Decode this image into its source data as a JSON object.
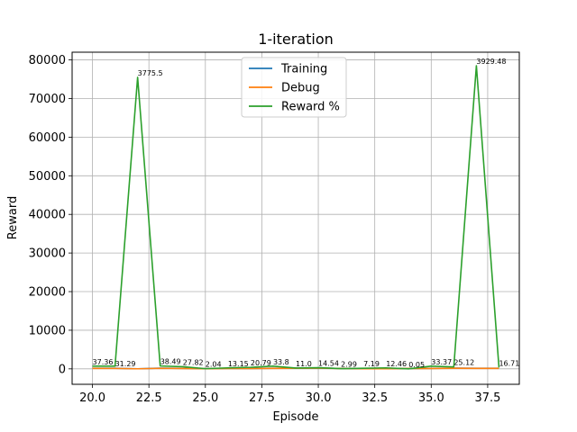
{
  "chart_data": {
    "type": "line",
    "title": "1-iteration",
    "xlabel": "Episode",
    "ylabel": "Reward",
    "xlim": [
      19.1,
      38.9
    ],
    "ylim": [
      -4000,
      82000
    ],
    "xticks": [
      20.0,
      22.5,
      25.0,
      27.5,
      30.0,
      32.5,
      35.0,
      37.5
    ],
    "xtick_labels": [
      "20.0",
      "22.5",
      "25.0",
      "27.5",
      "30.0",
      "32.5",
      "35.0",
      "37.5"
    ],
    "yticks": [
      0,
      10000,
      20000,
      30000,
      40000,
      50000,
      60000,
      70000,
      80000
    ],
    "ytick_labels": [
      "0",
      "10000",
      "20000",
      "30000",
      "40000",
      "50000",
      "60000",
      "70000",
      "80000"
    ],
    "grid": true,
    "legend_position": "top-center",
    "x": [
      20,
      21,
      22,
      23,
      24,
      25,
      26,
      27,
      28,
      29,
      30,
      31,
      32,
      33,
      34,
      35,
      36,
      37,
      38
    ],
    "series": [
      {
        "name": "Training",
        "color": "#1f77b4",
        "values": [
          160,
          160,
          20,
          190,
          130,
          50,
          110,
          90,
          160,
          190,
          200,
          110,
          30,
          50,
          100,
          120,
          190,
          150,
          160
        ]
      },
      {
        "name": "Debug",
        "color": "#ff7f0e",
        "values": [
          120,
          110,
          20,
          140,
          100,
          40,
          90,
          80,
          130,
          160,
          180,
          90,
          20,
          40,
          90,
          90,
          160,
          120,
          130
        ]
      },
      {
        "name": "Reward %",
        "color": "#2ca02c",
        "values": [
          700,
          700,
          75500,
          750,
          550,
          50,
          250,
          400,
          700,
          200,
          300,
          60,
          150,
          250,
          10,
          700,
          500,
          78500,
          350
        ]
      }
    ],
    "annotations": [
      {
        "x": 20,
        "y": 700,
        "text": "37.36"
      },
      {
        "x": 21,
        "y": 150,
        "text": "31.29"
      },
      {
        "x": 22,
        "y": 75500,
        "text": "3775.5"
      },
      {
        "x": 23,
        "y": 750,
        "text": "38.49"
      },
      {
        "x": 24,
        "y": 550,
        "text": "27.82"
      },
      {
        "x": 25,
        "y": 50,
        "text": "2.04"
      },
      {
        "x": 26,
        "y": 250,
        "text": "13.15"
      },
      {
        "x": 27,
        "y": 400,
        "text": "20.79"
      },
      {
        "x": 28,
        "y": 700,
        "text": "33.8"
      },
      {
        "x": 29,
        "y": 200,
        "text": "11.0"
      },
      {
        "x": 30,
        "y": 300,
        "text": "14.54"
      },
      {
        "x": 31,
        "y": 60,
        "text": "2.99"
      },
      {
        "x": 32,
        "y": 150,
        "text": "7.19"
      },
      {
        "x": 33,
        "y": 250,
        "text": "12.46"
      },
      {
        "x": 34,
        "y": 10,
        "text": "0.05"
      },
      {
        "x": 35,
        "y": 700,
        "text": "33.37"
      },
      {
        "x": 36,
        "y": 500,
        "text": "25.12"
      },
      {
        "x": 37,
        "y": 78500,
        "text": "3929.48"
      },
      {
        "x": 38,
        "y": 350,
        "text": "16.71"
      }
    ]
  }
}
